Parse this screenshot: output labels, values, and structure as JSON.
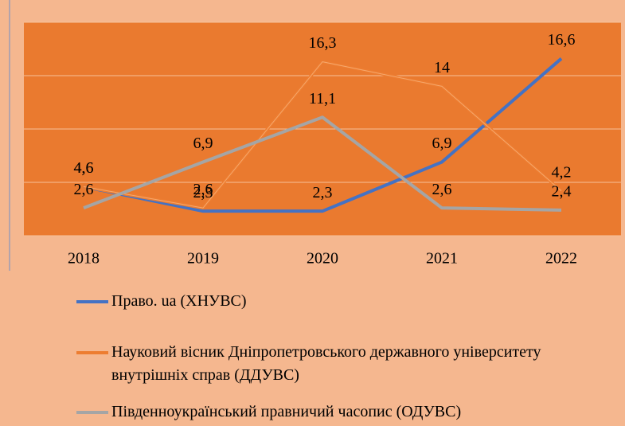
{
  "chart_data": {
    "type": "line",
    "categories": [
      "2018",
      "2019",
      "2020",
      "2021",
      "2022"
    ],
    "series": [
      {
        "name": "Право. ua (ХНУВС)",
        "color": "#4472c4",
        "values": [
          4.6,
          2.3,
          2.3,
          6.9,
          16.6
        ],
        "value_labels": [
          "4,6",
          "2,3",
          "2,3",
          "6,9",
          "16,6"
        ]
      },
      {
        "name": "Науковий вісник Дніпропетровського державного університету внутрішніх справ (ДДУВС)",
        "color": "#ed7d31",
        "values": [
          4.6,
          2.6,
          16.3,
          14,
          4.2
        ],
        "value_labels": [
          "4,6",
          "2,6",
          "16,3",
          "14",
          "4,2"
        ]
      },
      {
        "name": "Південноукраїнський правничий часопис (ОДУВС)",
        "color": "#a5a5a5",
        "values": [
          2.6,
          6.9,
          11.1,
          2.6,
          2.4
        ],
        "value_labels": [
          "2,6",
          "6,9",
          "11,1",
          "2,6",
          "2,4"
        ]
      }
    ],
    "ylim": [
      0,
      20
    ],
    "yticks": [
      0,
      5,
      10,
      15,
      20
    ],
    "grid": true
  }
}
